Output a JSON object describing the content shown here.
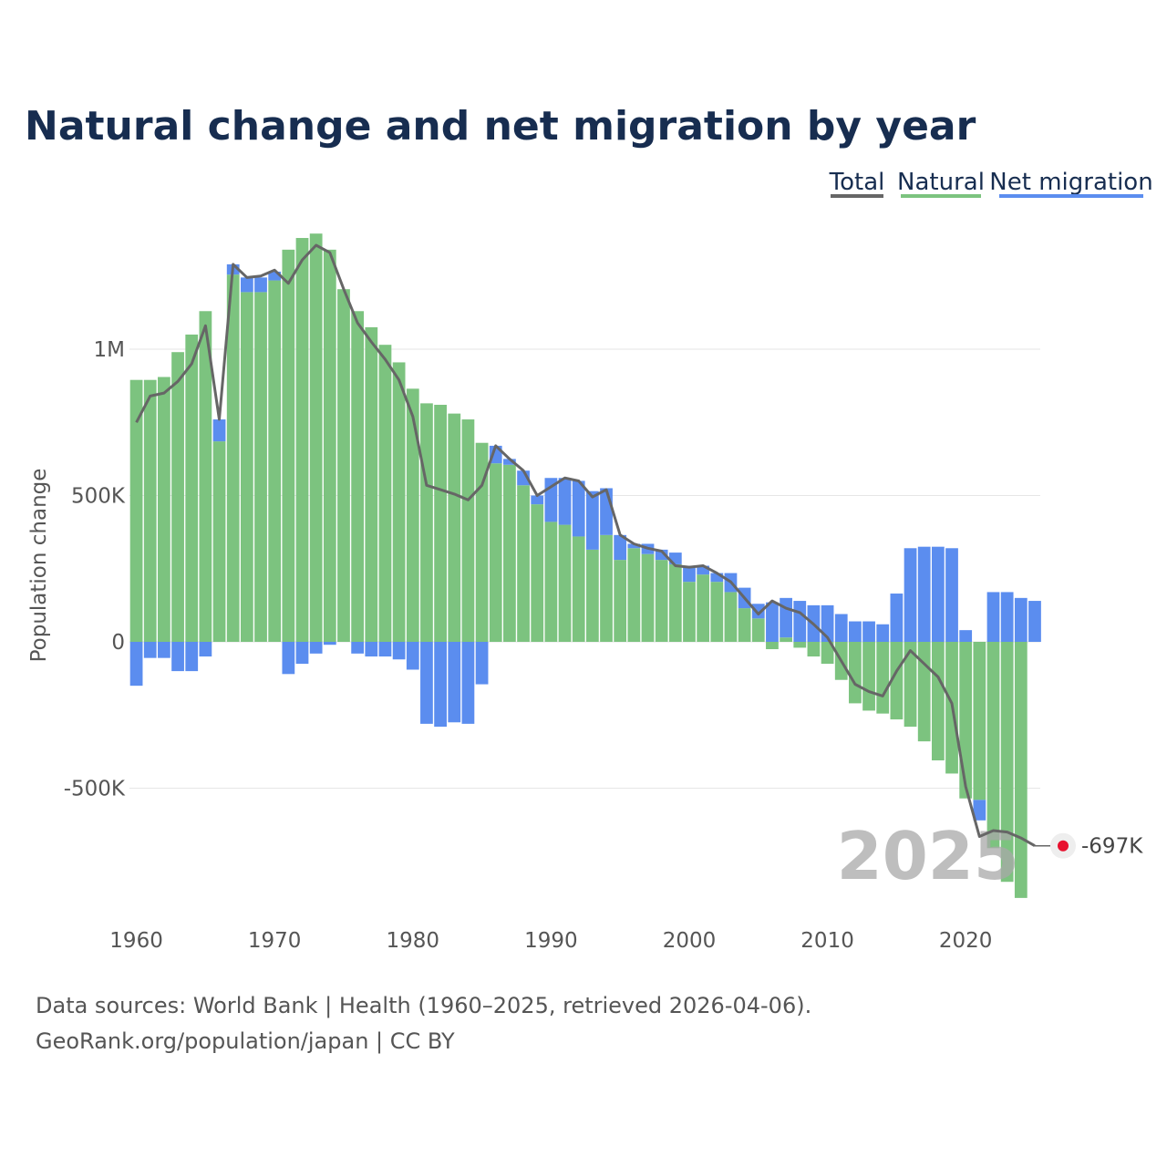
{
  "page": {
    "source_line1": "Data sources: World Bank | Health (1960–2025, retrieved 2026-04-06).",
    "source_line2": "GeoRank.org/population/japan | CC BY"
  },
  "colors": {
    "natural": "#7cc37f",
    "migration": "#5b8def",
    "total": "#666666",
    "grid": "#e6e6e6",
    "marker": "#e8102e"
  },
  "chart_data": {
    "type": "bar",
    "title": "Natural change and net migration by year",
    "ylabel": "Population change",
    "xlabel": "",
    "ylim": [
      -930000,
      1450000
    ],
    "xlim": [
      1960,
      2025
    ],
    "y_ticks": [
      {
        "value": 1000000,
        "label": "1M"
      },
      {
        "value": 500000,
        "label": "500K"
      },
      {
        "value": 0,
        "label": "0"
      },
      {
        "value": -500000,
        "label": "-500K"
      }
    ],
    "x_ticks": [
      {
        "value": 1960,
        "label": "1960"
      },
      {
        "value": 1970,
        "label": "1970"
      },
      {
        "value": 1980,
        "label": "1980"
      },
      {
        "value": 1990,
        "label": "1990"
      },
      {
        "value": 2000,
        "label": "2000"
      },
      {
        "value": 2010,
        "label": "2010"
      },
      {
        "value": 2020,
        "label": "2020"
      }
    ],
    "legend": [
      "Total",
      "Natural",
      "Net migration"
    ],
    "legend_position": "top-right",
    "years": [
      1960,
      1961,
      1962,
      1963,
      1964,
      1965,
      1966,
      1967,
      1968,
      1969,
      1970,
      1971,
      1972,
      1973,
      1974,
      1975,
      1976,
      1977,
      1978,
      1979,
      1980,
      1981,
      1982,
      1983,
      1984,
      1985,
      1986,
      1987,
      1988,
      1989,
      1990,
      1991,
      1992,
      1993,
      1994,
      1995,
      1996,
      1997,
      1998,
      1999,
      2000,
      2001,
      2002,
      2003,
      2004,
      2005,
      2006,
      2007,
      2008,
      2009,
      2010,
      2011,
      2012,
      2013,
      2014,
      2015,
      2016,
      2017,
      2018,
      2019,
      2020,
      2021,
      2022,
      2023,
      2024,
      2025
    ],
    "series": [
      {
        "name": "Natural",
        "values": [
          895000,
          895000,
          905000,
          990000,
          1050000,
          1130000,
          685000,
          1255000,
          1195000,
          1195000,
          1235000,
          1340000,
          1380000,
          1395000,
          1340000,
          1205000,
          1130000,
          1075000,
          1015000,
          955000,
          865000,
          815000,
          810000,
          780000,
          760000,
          680000,
          610000,
          605000,
          535000,
          470000,
          410000,
          400000,
          360000,
          315000,
          365000,
          280000,
          320000,
          300000,
          280000,
          265000,
          205000,
          230000,
          205000,
          170000,
          115000,
          80000,
          -25000,
          15000,
          -20000,
          -50000,
          -75000,
          -130000,
          -210000,
          -235000,
          -245000,
          -265000,
          -290000,
          -340000,
          -405000,
          -450000,
          -535000,
          -540000,
          -705000,
          -820000,
          -875000,
          0
        ]
      },
      {
        "name": "Net migration",
        "values": [
          -150000,
          -55000,
          -55000,
          -100000,
          -100000,
          -50000,
          75000,
          35000,
          50000,
          50000,
          30000,
          -110000,
          -75000,
          -40000,
          -10000,
          0,
          -40000,
          -50000,
          -50000,
          -60000,
          -95000,
          -280000,
          -290000,
          -275000,
          -280000,
          -145000,
          60000,
          20000,
          50000,
          30000,
          150000,
          160000,
          190000,
          200000,
          160000,
          85000,
          15000,
          35000,
          35000,
          40000,
          55000,
          30000,
          30000,
          65000,
          70000,
          50000,
          135000,
          135000,
          140000,
          125000,
          125000,
          95000,
          70000,
          70000,
          60000,
          165000,
          320000,
          325000,
          325000,
          320000,
          40000,
          -70000,
          170000,
          170000,
          150000,
          140000
        ]
      },
      {
        "name": "Total",
        "values": [
          750000,
          840000,
          850000,
          890000,
          950000,
          1080000,
          760000,
          1290000,
          1245000,
          1250000,
          1270000,
          1225000,
          1305000,
          1355000,
          1330000,
          1205000,
          1090000,
          1025000,
          965000,
          895000,
          770000,
          535000,
          520000,
          505000,
          485000,
          535000,
          670000,
          625000,
          585000,
          500000,
          530000,
          560000,
          550000,
          495000,
          520000,
          365000,
          335000,
          320000,
          310000,
          260000,
          255000,
          260000,
          235000,
          205000,
          150000,
          95000,
          140000,
          115000,
          100000,
          60000,
          15000,
          -65000,
          -145000,
          -170000,
          -185000,
          -100000,
          -30000,
          -75000,
          -120000,
          -210000,
          -495000,
          -665000,
          -645000,
          -650000,
          -670000,
          -697000
        ]
      }
    ],
    "highlight": {
      "year": "2025",
      "value_label": "-697K"
    }
  }
}
